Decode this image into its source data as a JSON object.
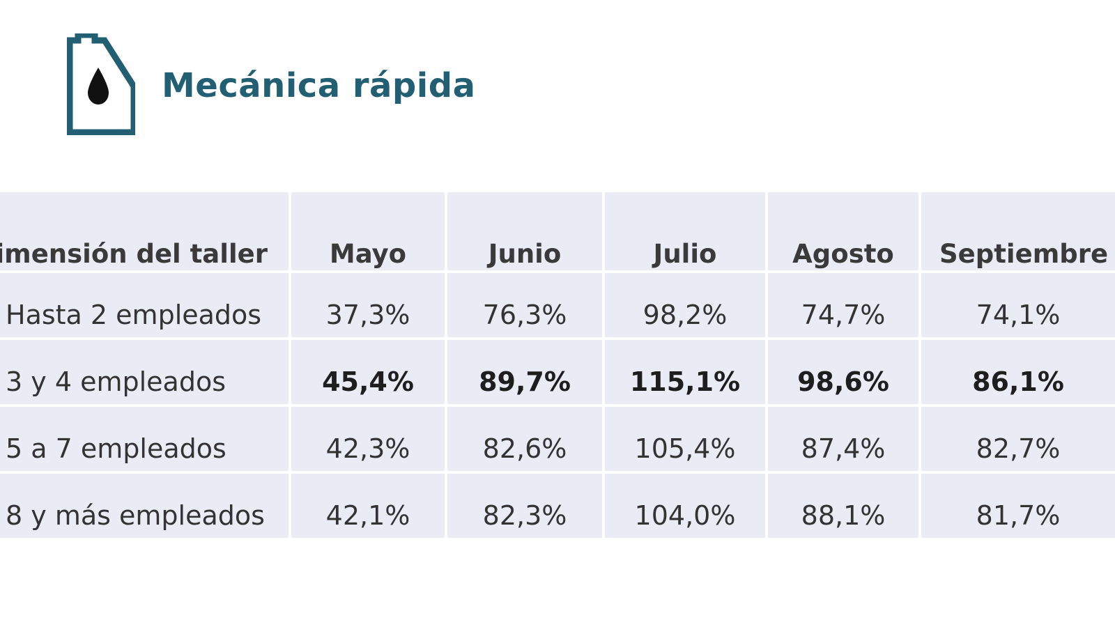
{
  "title": "Mecánica rápida",
  "icon": "oil-container-icon",
  "colors": {
    "accent": "#235f73",
    "table_bg": "#e9ecf5",
    "text": "#333333"
  },
  "chart_data": {
    "type": "table",
    "columns": [
      "Dimensión del taller",
      "Mayo",
      "Junio",
      "Julio",
      "Agosto",
      "Septiembre"
    ],
    "rows": [
      {
        "label": "Hasta 2 empleados",
        "values": [
          "37,3%",
          "76,3%",
          "98,2%",
          "74,7%",
          "74,1%"
        ],
        "bold": false
      },
      {
        "label": "3 y 4 empleados",
        "values": [
          "45,4%",
          "89,7%",
          "115,1%",
          "98,6%",
          "86,1%"
        ],
        "bold": true
      },
      {
        "label": "5 a 7 empleados",
        "values": [
          "42,3%",
          "82,6%",
          "105,4%",
          "87,4%",
          "82,7%"
        ],
        "bold": false
      },
      {
        "label": "8 y más empleados",
        "values": [
          "42,1%",
          "82,3%",
          "104,0%",
          "88,1%",
          "81,7%"
        ],
        "bold": false
      }
    ]
  }
}
